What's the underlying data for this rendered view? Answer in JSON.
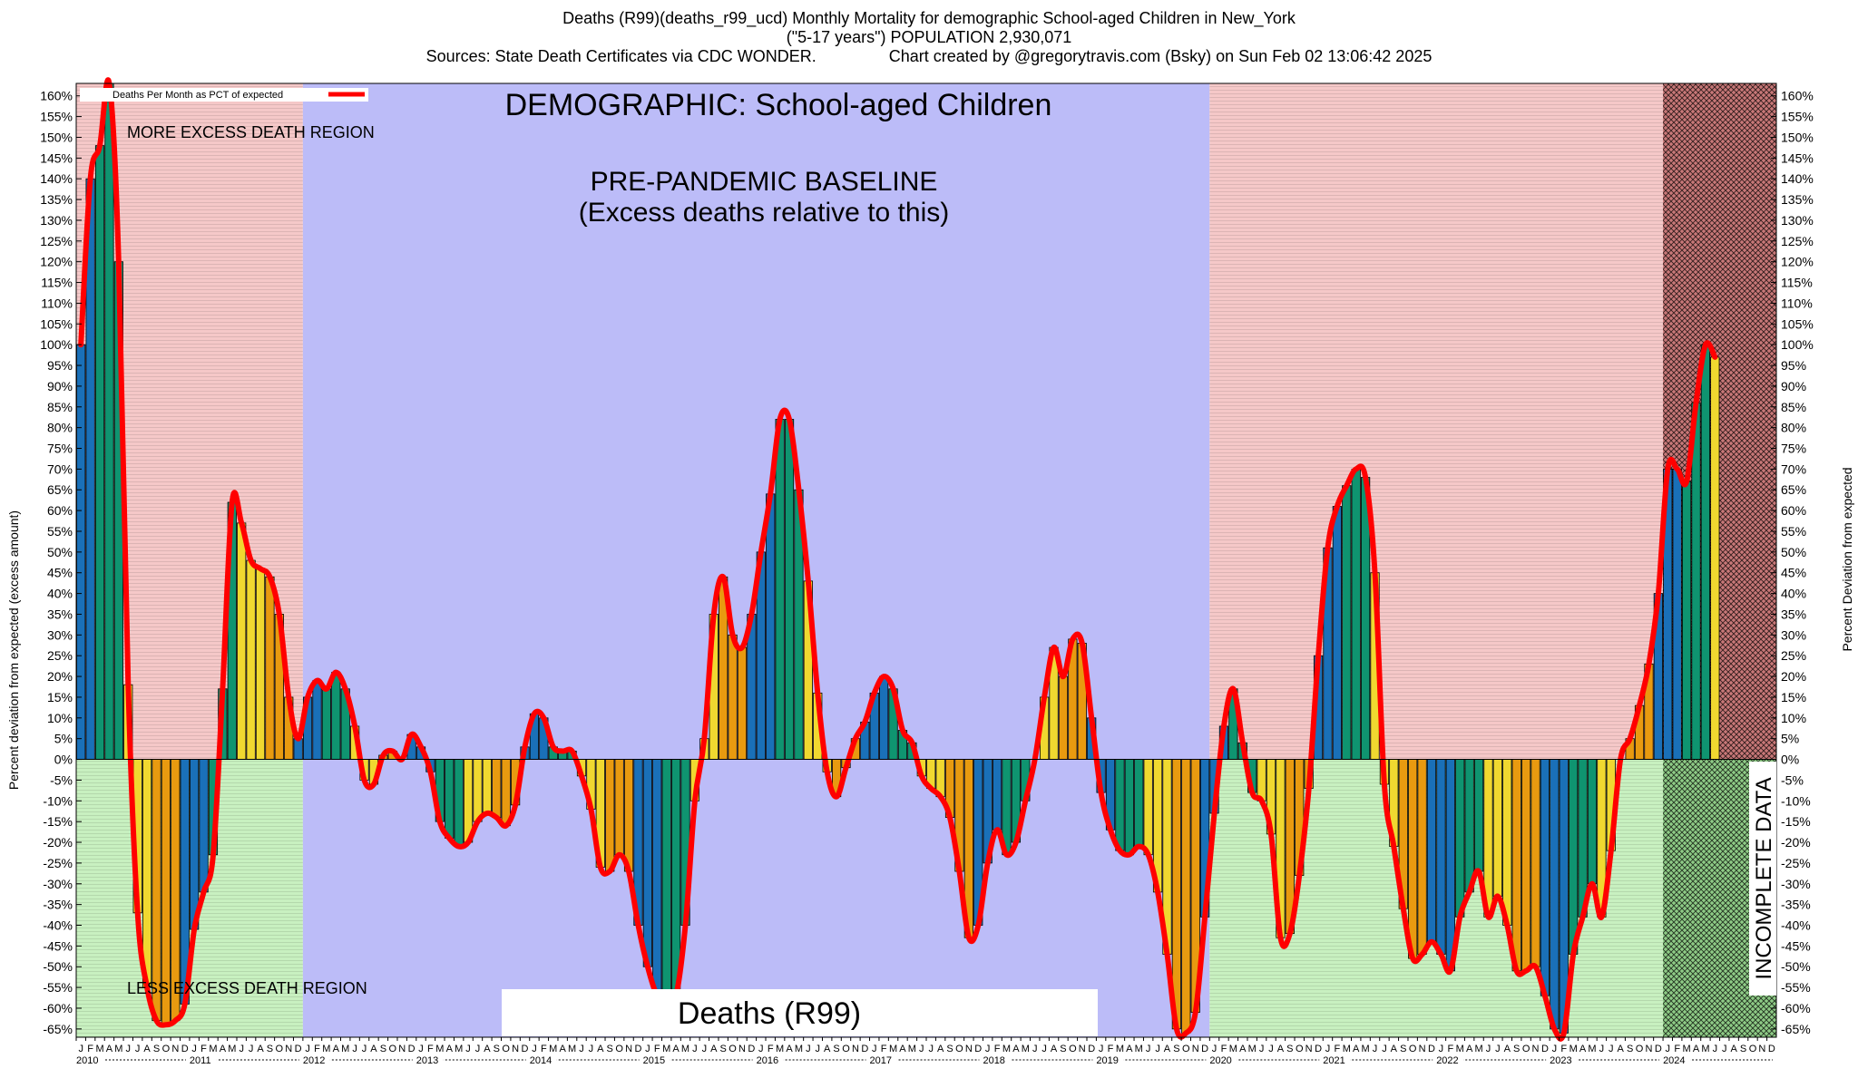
{
  "header": {
    "line1": "Deaths (R99)(deaths_r99_ucd) Monthly Mortality for demographic School-aged Children in New_York",
    "line2": "(\"5-17 years\") POPULATION 2,930,071",
    "line3": "Sources: State Death Certificates via CDC WONDER.                Chart created by @gregorytravis.com (Bsky) on Sun Feb 02 13:06:42 2025"
  },
  "chart_data": {
    "type": "bar",
    "title": "Deaths (R99)(deaths_r99_ucd) Monthly Mortality for demographic School-aged Children in New_York",
    "ylabel_left": "Percent deviation from expected (excess amount)",
    "ylabel_right": "Percent Deviation from expected",
    "ylim": [
      -67,
      163
    ],
    "y_tick_step": 5,
    "grid": "horizontal hatch",
    "legend": {
      "label": "Deaths Per Month as PCT of expected",
      "placement": "top-left"
    },
    "annotations": {
      "demographic": "DEMOGRAPHIC: School-aged Children",
      "baseline_line1": "PRE-PANDEMIC BASELINE",
      "baseline_line2": "(Excess deaths relative to this)",
      "more_excess": "MORE EXCESS DEATH REGION",
      "less_excess": "LESS EXCESS DEATH REGION",
      "cause": "Deaths (R99)",
      "incomplete": "INCOMPLETE DATA"
    },
    "month_letters": [
      "J",
      "F",
      "M",
      "A",
      "M",
      "J",
      "J",
      "A",
      "S",
      "O",
      "N",
      "D"
    ],
    "years": [
      "2010",
      "2011",
      "2012",
      "2013",
      "2014",
      "2015",
      "2016",
      "2017",
      "2018",
      "2019",
      "2020",
      "2021",
      "2022",
      "2023",
      "2024"
    ],
    "regions": [
      {
        "name": "pre-2012",
        "start": "2010-01",
        "end": "2011-12",
        "color": "#f5c8c8"
      },
      {
        "name": "pre-pandemic baseline",
        "start": "2012-01",
        "end": "2019-12",
        "color": "#bcbcf8"
      },
      {
        "name": "post-2020",
        "start": "2020-01",
        "end": "2023-12",
        "color": "#f5c8c8"
      },
      {
        "name": "incomplete data",
        "start": "2024-01",
        "end": "2024-12",
        "color": "#c87878"
      }
    ],
    "colors": {
      "winter": "#1a70b8",
      "spring": "#0f9470",
      "summer": "#f0d830",
      "autumn": "#e89a10",
      "line": "#ff0000",
      "positive_bg": "#f5c8c8",
      "negative_bg": "#c8f0c0",
      "baseline_bg": "#bcbcf8",
      "incomplete_bg": "#c87878"
    },
    "values": [
      100,
      140,
      148,
      163,
      120,
      18,
      -37,
      -55,
      -63,
      -64,
      -63,
      -59,
      -41,
      -32,
      -23,
      17,
      62,
      57,
      48,
      46,
      44,
      35,
      15,
      5,
      15,
      19,
      17,
      21,
      17,
      8,
      -5,
      -6,
      1,
      2,
      0,
      6,
      3,
      -3,
      -15,
      -19,
      -21,
      -20,
      -15,
      -13,
      -14,
      -16,
      -11,
      3,
      11,
      10,
      3,
      2,
      2,
      -4,
      -12,
      -26,
      -27,
      -23,
      -27,
      -40,
      -50,
      -57,
      -59,
      -57,
      -40,
      -10,
      5,
      35,
      44,
      30,
      27,
      35,
      50,
      64,
      82,
      82,
      65,
      43,
      16,
      -3,
      -9,
      -2,
      5,
      9,
      16,
      20,
      17,
      7,
      4,
      -4,
      -7,
      -9,
      -14,
      -27,
      -43,
      -40,
      -25,
      -17,
      -23,
      -20,
      -10,
      0,
      15,
      27,
      20,
      29,
      28,
      10,
      -8,
      -17,
      -22,
      -23,
      -21,
      -23,
      -32,
      -47,
      -65,
      -66,
      -61,
      -38,
      -13,
      8,
      17,
      4,
      -8,
      -10,
      -18,
      -43,
      -42,
      -28,
      -7,
      25,
      51,
      61,
      66,
      70,
      68,
      45,
      -6,
      -21,
      -36,
      -48,
      -47,
      -44,
      -47,
      -51,
      -38,
      -32,
      -27,
      -38,
      -33,
      -40,
      -51,
      -51,
      -50,
      -57,
      -65,
      -66,
      -47,
      -38,
      -30,
      -38,
      -22,
      0,
      5,
      13,
      23,
      40,
      70,
      70,
      67,
      86,
      100,
      97
    ]
  }
}
